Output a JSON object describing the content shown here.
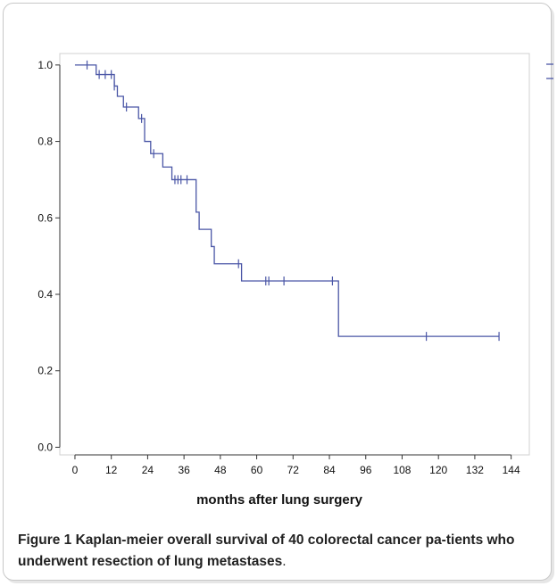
{
  "figure": {
    "label": "Figure 1",
    "caption": "Kaplan-meier overall survival of 40 colorectal cancer pa-tients who underwent resection of lung metastases",
    "caption_end": "."
  },
  "chart_data": {
    "type": "line",
    "style": "step",
    "title": "",
    "xlabel": "months after lung surgery",
    "ylabel": "",
    "xlim": [
      -5,
      150
    ],
    "ylim": [
      -0.02,
      1.03
    ],
    "xticks": [
      0,
      12,
      24,
      36,
      48,
      60,
      72,
      84,
      96,
      108,
      120,
      132,
      144
    ],
    "yticks": [
      0.0,
      0.2,
      0.4,
      0.6,
      0.8,
      1.0
    ],
    "ytick_labels": [
      "0.0",
      "0.2",
      "0.4",
      "0.6",
      "0.8",
      "1.0"
    ],
    "grid": false,
    "legend": "top-right",
    "line_color": "#4a56a6",
    "series": [
      {
        "steps": [
          [
            0,
            1.0
          ],
          [
            7,
            0.975
          ],
          [
            13,
            0.945
          ],
          [
            14,
            0.918
          ],
          [
            16,
            0.89
          ],
          [
            21,
            0.86
          ],
          [
            23,
            0.8
          ],
          [
            25,
            0.768
          ],
          [
            29,
            0.733
          ],
          [
            32,
            0.7
          ],
          [
            40,
            0.615
          ],
          [
            41,
            0.57
          ],
          [
            45,
            0.525
          ],
          [
            46,
            0.48
          ],
          [
            55,
            0.435
          ],
          [
            87,
            0.29
          ],
          [
            140,
            0.29
          ]
        ],
        "censored": [
          [
            4,
            1.0
          ],
          [
            8,
            0.975
          ],
          [
            10,
            0.975
          ],
          [
            12,
            0.975
          ],
          [
            13,
            0.945
          ],
          [
            17,
            0.89
          ],
          [
            22,
            0.86
          ],
          [
            26,
            0.768
          ],
          [
            33,
            0.7
          ],
          [
            34,
            0.7
          ],
          [
            35,
            0.7
          ],
          [
            37,
            0.7
          ],
          [
            54,
            0.48
          ],
          [
            63,
            0.435
          ],
          [
            64,
            0.435
          ],
          [
            69,
            0.435
          ],
          [
            85,
            0.435
          ],
          [
            116,
            0.29
          ],
          [
            140,
            0.29
          ]
        ]
      }
    ]
  }
}
